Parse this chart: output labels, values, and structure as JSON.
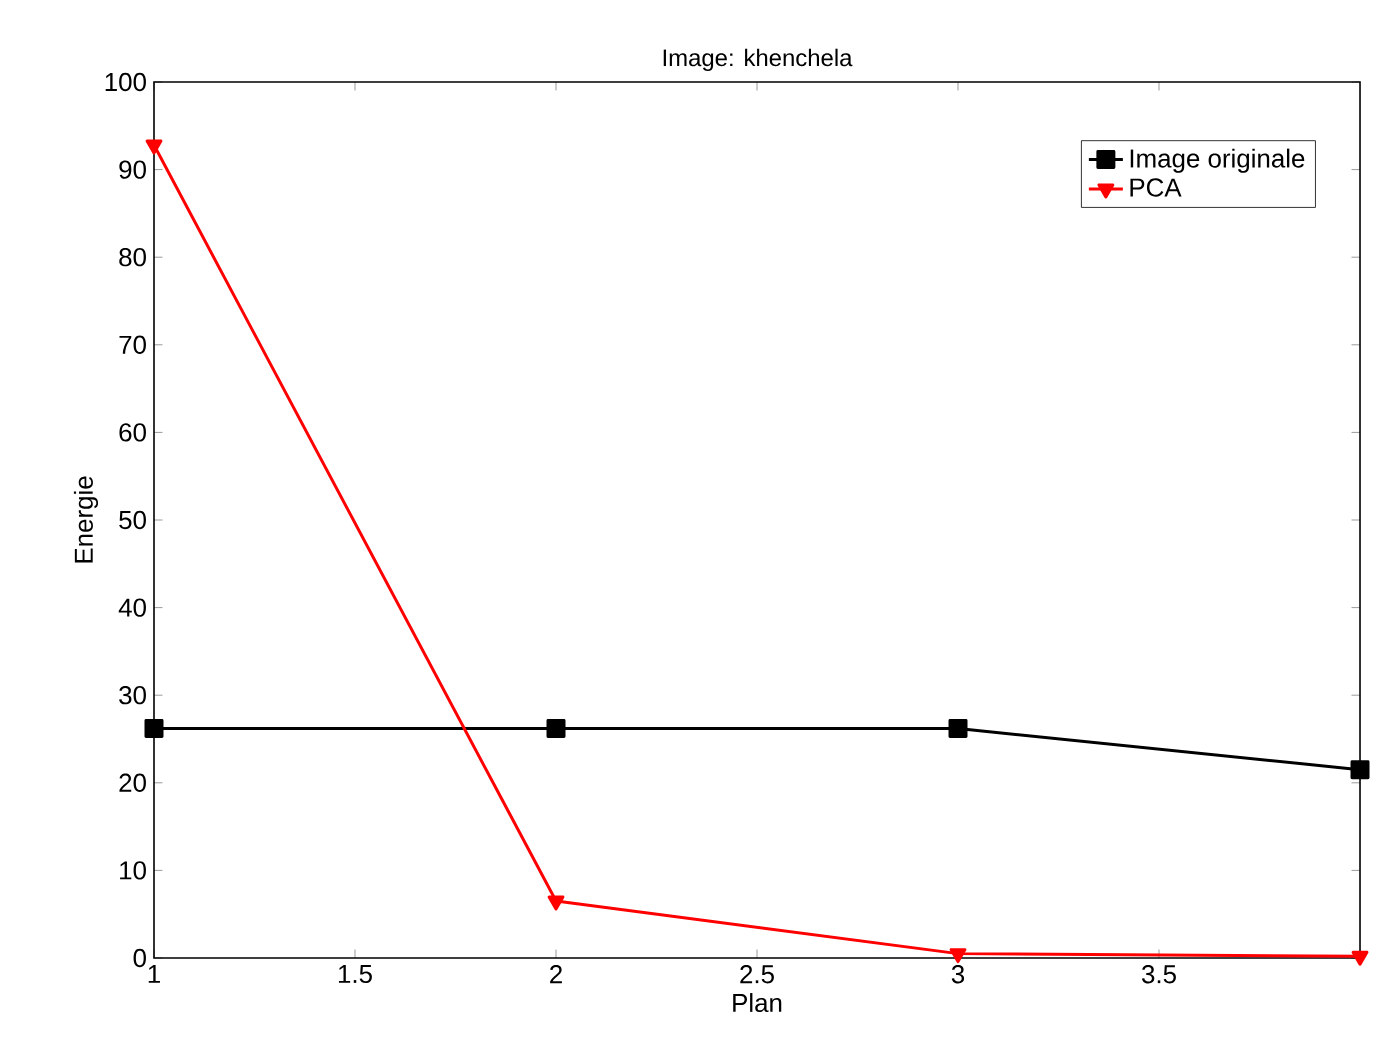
{
  "chart_data": {
    "type": "line",
    "title": "Image: khenchela",
    "xlabel": "Plan",
    "ylabel": "Energie",
    "x": [
      1,
      2,
      3,
      4
    ],
    "series": [
      {
        "name": "Image originale",
        "color": "#000000",
        "marker": "square",
        "values": [
          26.2,
          26.2,
          26.2,
          21.5
        ]
      },
      {
        "name": "PCA",
        "color": "#ff0000",
        "marker": "triangle",
        "values": [
          92.8,
          6.5,
          0.5,
          0.2
        ]
      }
    ],
    "xlim": [
      1,
      4
    ],
    "ylim": [
      0,
      100
    ],
    "xticks": [
      1,
      1.5,
      2,
      2.5,
      3,
      3.5
    ],
    "yticks": [
      0,
      10,
      20,
      30,
      40,
      50,
      60,
      70,
      80,
      90,
      100
    ],
    "legend": "top right",
    "grid": false,
    "line_style": "solid"
  }
}
